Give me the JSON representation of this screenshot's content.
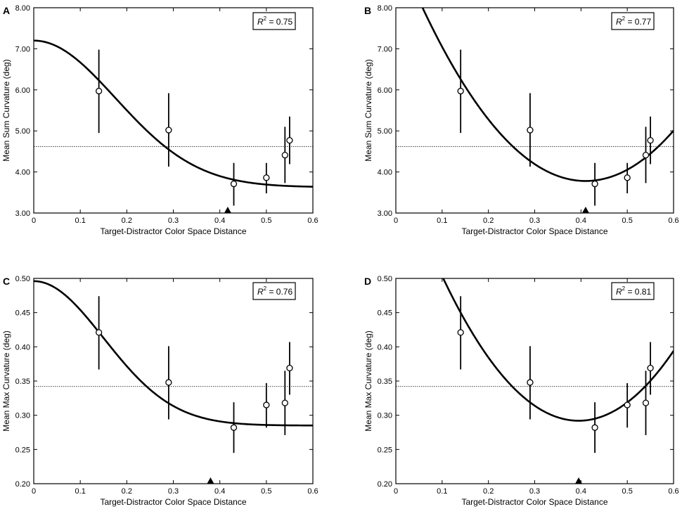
{
  "chart_data": [
    {
      "type": "scatter",
      "panel_label": "A",
      "xlabel": "Target-Distractor Color Space Distance",
      "ylabel": "Mean Sum Curvature (deg)",
      "xlim": [
        0,
        0.6
      ],
      "ylim": [
        3.0,
        8.0
      ],
      "x_ticks": [
        0,
        0.1,
        0.2,
        0.3,
        0.4,
        0.5,
        0.6
      ],
      "x_tick_labels": [
        "0",
        "0.1",
        "0.2",
        "0.3",
        "0.4",
        "0.5",
        "0.6"
      ],
      "y_ticks": [
        3,
        4,
        5,
        6,
        7,
        8
      ],
      "y_tick_labels": [
        "3.00",
        "4.00",
        "5.00",
        "6.00",
        "7.00",
        "8.00"
      ],
      "points": [
        {
          "x": 0.14,
          "y": 5.97,
          "lo": 4.95,
          "hi": 6.98
        },
        {
          "x": 0.29,
          "y": 5.02,
          "lo": 4.13,
          "hi": 5.92
        },
        {
          "x": 0.43,
          "y": 3.71,
          "lo": 3.18,
          "hi": 4.22
        },
        {
          "x": 0.5,
          "y": 3.86,
          "lo": 3.48,
          "hi": 4.22
        },
        {
          "x": 0.54,
          "y": 4.41,
          "lo": 3.73,
          "hi": 5.1
        },
        {
          "x": 0.55,
          "y": 4.77,
          "lo": 4.19,
          "hi": 5.35
        }
      ],
      "fit": {
        "kind": "gaussian",
        "baseline": 3.63,
        "amplitude": 3.57,
        "sigma": 0.176,
        "xmax": 0.6
      },
      "reference_line_y": 4.62,
      "marker_x": 0.417,
      "r2_label": "= 0.75"
    },
    {
      "type": "scatter",
      "panel_label": "B",
      "xlabel": "Target-Distractor Color Space Distance",
      "ylabel": "Mean Sum Curvature (deg)",
      "xlim": [
        0,
        0.6
      ],
      "ylim": [
        3.0,
        8.0
      ],
      "x_ticks": [
        0,
        0.1,
        0.2,
        0.3,
        0.4,
        0.5,
        0.6
      ],
      "x_tick_labels": [
        "0",
        "0.1",
        "0.2",
        "0.3",
        "0.4",
        "0.5",
        "0.6"
      ],
      "y_ticks": [
        3,
        4,
        5,
        6,
        7,
        8
      ],
      "y_tick_labels": [
        "3.00",
        "4.00",
        "5.00",
        "6.00",
        "7.00",
        "8.00"
      ],
      "points": [
        {
          "x": 0.14,
          "y": 5.97,
          "lo": 4.95,
          "hi": 6.98
        },
        {
          "x": 0.29,
          "y": 5.02,
          "lo": 4.13,
          "hi": 5.92
        },
        {
          "x": 0.43,
          "y": 3.71,
          "lo": 3.18,
          "hi": 4.22
        },
        {
          "x": 0.5,
          "y": 3.86,
          "lo": 3.48,
          "hi": 4.22
        },
        {
          "x": 0.54,
          "y": 4.41,
          "lo": 3.73,
          "hi": 5.1
        },
        {
          "x": 0.55,
          "y": 4.77,
          "lo": 4.19,
          "hi": 5.35
        }
      ],
      "fit": {
        "kind": "quadratic",
        "vertex_x": 0.41,
        "vertex_y": 3.78,
        "a": 34.0,
        "xmax": 0.6
      },
      "reference_line_y": 4.62,
      "marker_x": 0.41,
      "r2_label": "= 0.77"
    },
    {
      "type": "scatter",
      "panel_label": "C",
      "xlabel": "Target-Distractor Color Space Distance",
      "ylabel": "Mean Max Curvature (deg)",
      "xlim": [
        0,
        0.6
      ],
      "ylim": [
        0.2,
        0.5
      ],
      "x_ticks": [
        0,
        0.1,
        0.2,
        0.3,
        0.4,
        0.5,
        0.6
      ],
      "x_tick_labels": [
        "0",
        "0.1",
        "0.2",
        "0.3",
        "0.4",
        "0.5",
        "0.6"
      ],
      "y_ticks": [
        0.2,
        0.25,
        0.3,
        0.35,
        0.4,
        0.45,
        0.5
      ],
      "y_tick_labels": [
        "0.20",
        "0.25",
        "0.30",
        "0.35",
        "0.40",
        "0.45",
        "0.50"
      ],
      "points": [
        {
          "x": 0.14,
          "y": 0.421,
          "lo": 0.367,
          "hi": 0.474
        },
        {
          "x": 0.29,
          "y": 0.348,
          "lo": 0.294,
          "hi": 0.401
        },
        {
          "x": 0.43,
          "y": 0.282,
          "lo": 0.245,
          "hi": 0.319
        },
        {
          "x": 0.5,
          "y": 0.315,
          "lo": 0.282,
          "hi": 0.347
        },
        {
          "x": 0.54,
          "y": 0.318,
          "lo": 0.271,
          "hi": 0.365
        },
        {
          "x": 0.55,
          "y": 0.369,
          "lo": 0.33,
          "hi": 0.407
        }
      ],
      "fit": {
        "kind": "gaussian",
        "baseline": 0.285,
        "amplitude": 0.211,
        "sigma": 0.15,
        "xmax": 0.6
      },
      "reference_line_y": 0.342,
      "marker_x": 0.38,
      "r2_label": "= 0.76"
    },
    {
      "type": "scatter",
      "panel_label": "D",
      "xlabel": "Target-Distractor Color Space Distance",
      "ylabel": "Mean Max Curvature (deg)",
      "xlim": [
        0,
        0.6
      ],
      "ylim": [
        0.2,
        0.5
      ],
      "x_ticks": [
        0,
        0.1,
        0.2,
        0.3,
        0.4,
        0.5,
        0.6
      ],
      "x_tick_labels": [
        "0",
        "0.1",
        "0.2",
        "0.3",
        "0.4",
        "0.5",
        "0.6"
      ],
      "y_ticks": [
        0.2,
        0.25,
        0.3,
        0.35,
        0.4,
        0.45,
        0.5
      ],
      "y_tick_labels": [
        "0.20",
        "0.25",
        "0.30",
        "0.35",
        "0.40",
        "0.45",
        "0.50"
      ],
      "points": [
        {
          "x": 0.14,
          "y": 0.421,
          "lo": 0.367,
          "hi": 0.474
        },
        {
          "x": 0.29,
          "y": 0.348,
          "lo": 0.294,
          "hi": 0.401
        },
        {
          "x": 0.43,
          "y": 0.282,
          "lo": 0.245,
          "hi": 0.319
        },
        {
          "x": 0.5,
          "y": 0.315,
          "lo": 0.282,
          "hi": 0.347
        },
        {
          "x": 0.54,
          "y": 0.318,
          "lo": 0.271,
          "hi": 0.365
        },
        {
          "x": 0.55,
          "y": 0.369,
          "lo": 0.33,
          "hi": 0.407
        }
      ],
      "fit": {
        "kind": "quadratic",
        "vertex_x": 0.395,
        "vertex_y": 0.292,
        "a": 2.43,
        "xmax": 0.6
      },
      "reference_line_y": 0.342,
      "marker_x": 0.395,
      "r2_label": "= 0.81"
    }
  ]
}
